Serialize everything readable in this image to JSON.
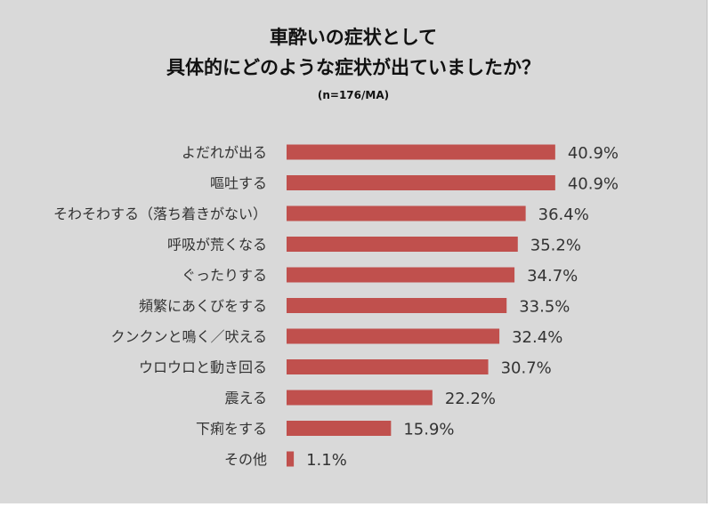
{
  "chart_data": {
    "type": "bar",
    "orientation": "horizontal",
    "title": "車酔いの症状として",
    "title_line2": "具体的にどのような症状が出ていましたか？",
    "subtitle": "(n=176/MA)",
    "categories": [
      "よだれが出る",
      "嘔吐する",
      "そわそわする（落ち着きがない）",
      "呼吸が荒くなる",
      "ぐったりする",
      "頻繁にあくびをする",
      "クンクンと鳴く／吠える",
      "ウロウロと動き回る",
      "震える",
      "下痢をする",
      "その他"
    ],
    "values": [
      40.9,
      40.9,
      36.4,
      35.2,
      34.7,
      33.5,
      32.4,
      30.7,
      22.2,
      15.9,
      1.1
    ],
    "value_labels": [
      "40.9%",
      "40.9%",
      "36.4%",
      "35.2%",
      "34.7%",
      "33.5%",
      "32.4%",
      "30.7%",
      "22.2%",
      "15.9%",
      "1.1%"
    ],
    "unit": "%",
    "xlim": [
      0,
      100
    ],
    "bar_color": "#c0504d",
    "grid": false,
    "legend": "none"
  }
}
